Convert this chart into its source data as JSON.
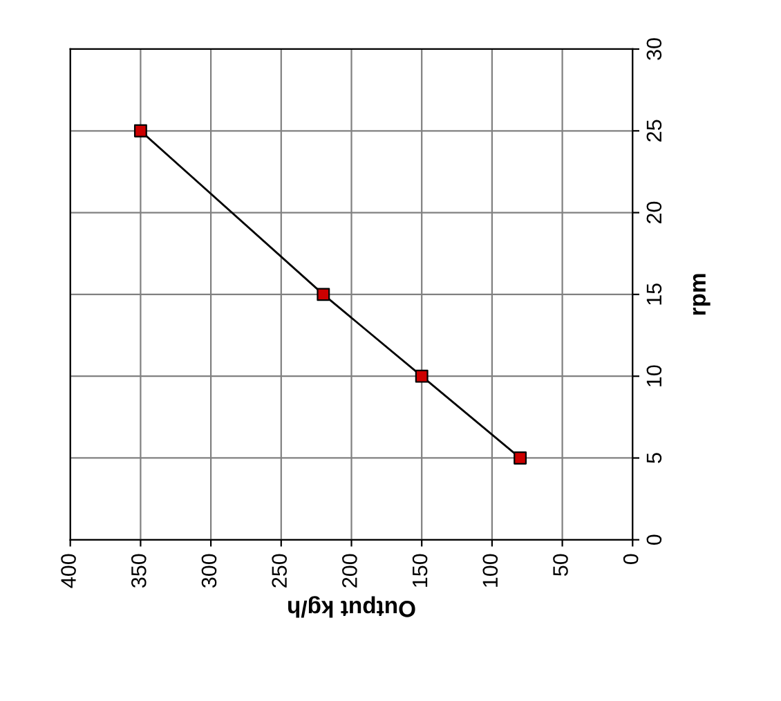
{
  "chart_data": {
    "type": "line",
    "xlabel": "Output kg/h",
    "ylabel": "rpm",
    "x": [
      350,
      220,
      150,
      80
    ],
    "series": [
      {
        "color": "#000000",
        "colors": [
          "#cc0000",
          "#cc0000",
          "#cc0000",
          "#cc0000"
        ],
        "values": [
          25,
          15,
          10,
          5
        ]
      }
    ],
    "marker": "square",
    "line_style": "solid",
    "xlim": [
      400,
      0
    ],
    "xticks": [
      400,
      350,
      300,
      250,
      200,
      150,
      100,
      50,
      0
    ],
    "ylim": [
      0,
      30
    ],
    "yticks": [
      0,
      5,
      10,
      15,
      20,
      25,
      30
    ],
    "grid": true
  }
}
